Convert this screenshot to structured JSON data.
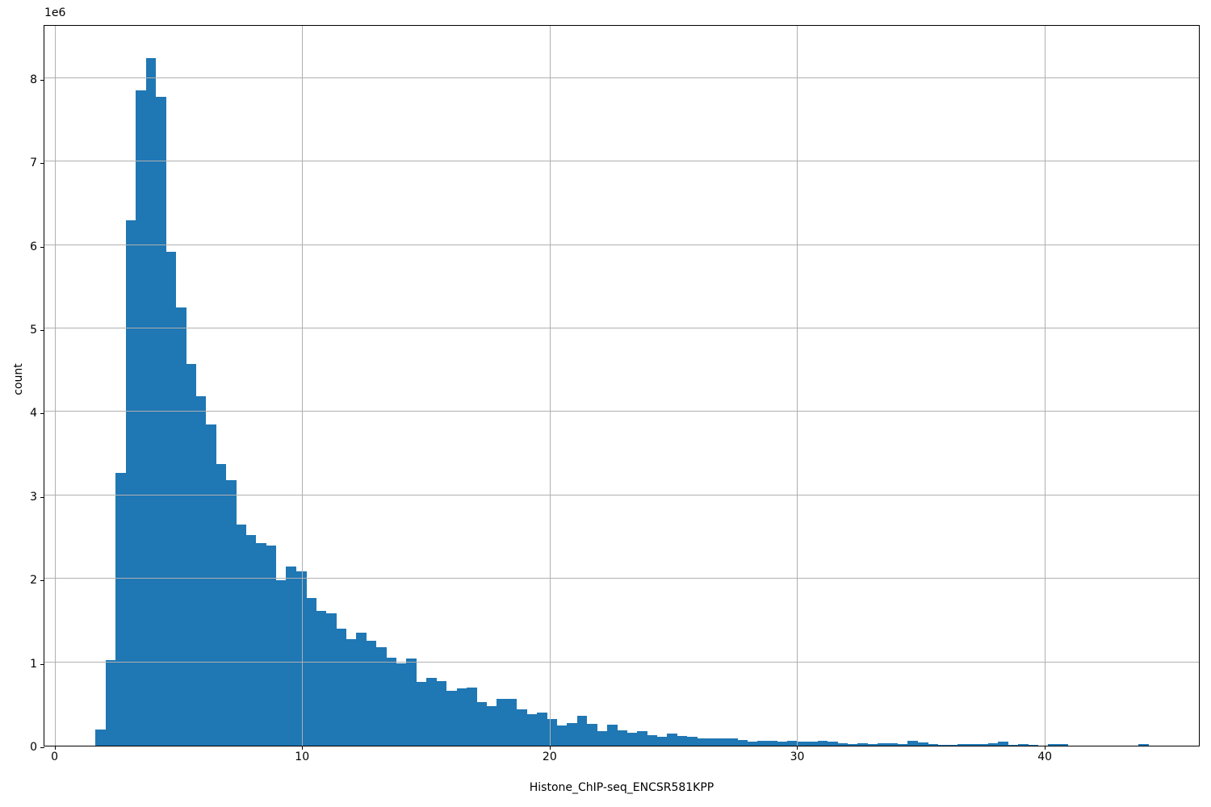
{
  "figure": {
    "background": "#ffffff"
  },
  "chart_data": {
    "type": "bar",
    "subtype": "histogram",
    "title": "",
    "xlabel": "Histone_ChIP-seq_ENCSR581KPP",
    "ylabel": "count",
    "y_offset_label": "1e6",
    "legend": null,
    "grid": true,
    "grid_color": "#b0b0b0",
    "bar_color": "#1f77b4",
    "axis_color": "#000000",
    "xlim": [
      -0.41,
      46.29
    ],
    "ylim": [
      0,
      8646000
    ],
    "x_ticks": [
      0,
      10,
      20,
      30,
      40
    ],
    "y_ticks": [
      0,
      1,
      2,
      3,
      4,
      5,
      6,
      7,
      8
    ],
    "y_tick_scale": 1000000,
    "bin_start": 1.66,
    "bin_width": 0.405,
    "counts": [
      190000,
      1030000,
      3270000,
      6300000,
      7850000,
      8240000,
      7780000,
      5920000,
      5250000,
      4570000,
      4190000,
      3850000,
      3380000,
      3180000,
      2650000,
      2520000,
      2430000,
      2400000,
      1980000,
      2150000,
      2090000,
      1770000,
      1620000,
      1590000,
      1400000,
      1280000,
      1350000,
      1260000,
      1180000,
      1050000,
      990000,
      1040000,
      760000,
      810000,
      770000,
      660000,
      690000,
      700000,
      520000,
      470000,
      560000,
      565000,
      440000,
      380000,
      400000,
      320000,
      240000,
      270000,
      360000,
      260000,
      170000,
      250000,
      180000,
      155000,
      170000,
      130000,
      110000,
      150000,
      120000,
      105000,
      85000,
      90000,
      90000,
      85000,
      70000,
      50000,
      60000,
      55000,
      50000,
      55000,
      45000,
      50000,
      55000,
      50000,
      25000,
      15000,
      25000,
      15000,
      30000,
      30000,
      20000,
      58000,
      40000,
      20000,
      6000,
      6000,
      15000,
      15000,
      20000,
      28000,
      50000,
      6000,
      20000,
      6000,
      0,
      15000,
      15000,
      0,
      0,
      0,
      0,
      0,
      0,
      0,
      20000,
      0,
      0
    ]
  }
}
